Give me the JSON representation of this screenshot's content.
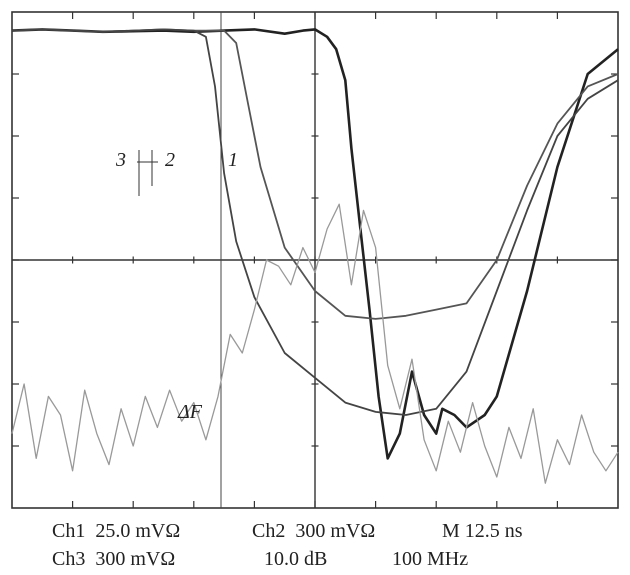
{
  "chart_data": {
    "type": "line",
    "title": "",
    "xlabel": "",
    "ylabel": "",
    "grid": true,
    "x_divisions": 10,
    "y_divisions": 8,
    "xlim": [
      0,
      10
    ],
    "ylim": [
      0,
      8
    ],
    "annotations": {
      "trace3": "3",
      "trace2": "2",
      "trace1": "1",
      "deltaF": "ΔF"
    },
    "series": [
      {
        "key": "1",
        "color": "#222222",
        "x": [
          0,
          0.5,
          1,
          1.5,
          2,
          2.5,
          3,
          3.5,
          4,
          4.5,
          4.8,
          5.0,
          5.2,
          5.35,
          5.5,
          5.6,
          5.75,
          5.9,
          6.05,
          6.2,
          6.4,
          6.6,
          6.8,
          7.0,
          7.1,
          7.3,
          7.5,
          7.8,
          8,
          8.5,
          9,
          9.5,
          10
        ],
        "y": [
          7.7,
          7.72,
          7.7,
          7.68,
          7.69,
          7.7,
          7.68,
          7.7,
          7.72,
          7.65,
          7.7,
          7.72,
          7.6,
          7.4,
          6.9,
          5.8,
          4.5,
          3.2,
          1.8,
          0.8,
          1.2,
          2.2,
          1.5,
          1.2,
          1.6,
          1.5,
          1.3,
          1.5,
          1.8,
          3.5,
          5.5,
          7.0,
          7.4
        ]
      },
      {
        "key": "2",
        "color": "#555555",
        "x": [
          0,
          0.5,
          1,
          1.5,
          2,
          2.5,
          3,
          3.5,
          3.7,
          3.9,
          4.1,
          4.5,
          5.0,
          5.5,
          6.0,
          6.5,
          7.0,
          7.5,
          8,
          8.5,
          9,
          9.5,
          10
        ],
        "y": [
          7.7,
          7.72,
          7.7,
          7.68,
          7.7,
          7.72,
          7.7,
          7.7,
          7.5,
          6.5,
          5.5,
          4.2,
          3.5,
          3.1,
          3.05,
          3.1,
          3.2,
          3.3,
          4.0,
          5.2,
          6.2,
          6.8,
          7.0
        ]
      },
      {
        "key": "3",
        "color": "#444444",
        "x": [
          0,
          0.5,
          1,
          1.5,
          2,
          2.5,
          3,
          3.2,
          3.35,
          3.5,
          3.7,
          4.0,
          4.5,
          5.0,
          5.5,
          6.0,
          6.5,
          7.0,
          7.5,
          8,
          8.5,
          9,
          9.5,
          10
        ],
        "y": [
          7.7,
          7.72,
          7.7,
          7.68,
          7.7,
          7.72,
          7.7,
          7.6,
          6.8,
          5.4,
          4.3,
          3.4,
          2.5,
          2.1,
          1.7,
          1.55,
          1.5,
          1.6,
          2.2,
          3.5,
          4.8,
          6.0,
          6.6,
          6.9
        ]
      },
      {
        "key": "ref",
        "color": "#999999",
        "x": [
          0,
          0.2,
          0.4,
          0.6,
          0.8,
          1.0,
          1.2,
          1.4,
          1.6,
          1.8,
          2.0,
          2.2,
          2.4,
          2.6,
          2.8,
          3.0,
          3.2,
          3.4,
          3.6,
          3.8,
          4.0,
          4.2,
          4.4,
          4.6,
          4.8,
          5.0,
          5.2,
          5.4,
          5.6,
          5.8,
          6.0,
          6.2,
          6.4,
          6.6,
          6.8,
          7.0,
          7.2,
          7.4,
          7.6,
          7.8,
          8.0,
          8.2,
          8.4,
          8.6,
          8.8,
          9.0,
          9.2,
          9.4,
          9.6,
          9.8,
          10
        ],
        "y": [
          1.2,
          2.0,
          0.8,
          1.8,
          1.5,
          0.6,
          1.9,
          1.2,
          0.7,
          1.6,
          1.0,
          1.8,
          1.3,
          1.9,
          1.4,
          1.7,
          1.1,
          1.8,
          2.8,
          2.5,
          3.2,
          4.0,
          3.9,
          3.6,
          4.2,
          3.8,
          4.5,
          4.9,
          3.6,
          4.8,
          4.2,
          2.3,
          1.6,
          2.4,
          1.1,
          0.6,
          1.4,
          0.9,
          1.7,
          1.0,
          0.5,
          1.3,
          0.8,
          1.6,
          0.4,
          1.1,
          0.7,
          1.5,
          0.9,
          0.6,
          0.9
        ]
      }
    ]
  },
  "readout": {
    "line1_ch1": "Ch1  25.0 mVΩ",
    "line1_ch2": "Ch2  300 mVΩ",
    "line1_m": "M 12.5 ns",
    "line2_ch3": "Ch3  300 mVΩ",
    "line2_db": "10.0 dB",
    "line2_freq": "100 MHz"
  }
}
